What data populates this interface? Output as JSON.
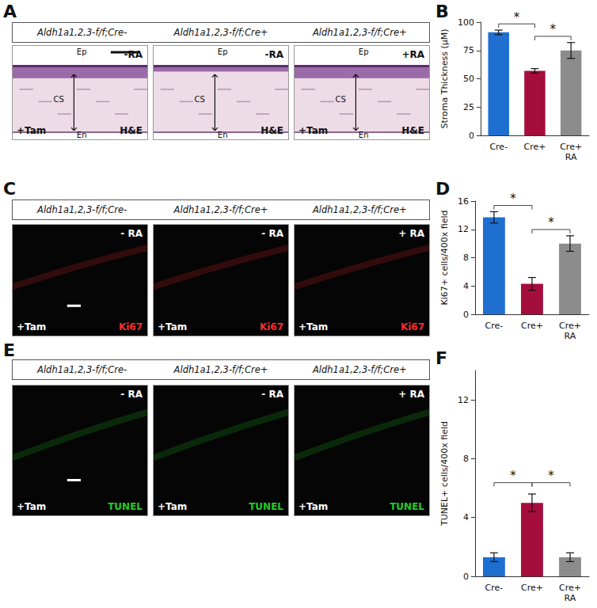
{
  "figure": {
    "image_panels": [
      {
        "panel_label": "A",
        "type": "brightfield",
        "color": "#111111",
        "headers": [
          "Aldh1a1,2,3-f/f;Cre-",
          "Aldh1a1,2,3-f/f;Cre+",
          "Aldh1a1,2,3-f/f;Cre+"
        ],
        "images": [
          {
            "treatment": "-RA",
            "tam": "+Tam",
            "stain": "H&E",
            "layer_labels": [
              "Ep",
              "CS",
              "En"
            ]
          },
          {
            "treatment": "-RA",
            "stain": "H&E",
            "layer_labels": [
              "Ep",
              "CS",
              "En"
            ]
          },
          {
            "treatment": "+RA",
            "tam": "+Tam",
            "stain": "H&E",
            "layer_labels": [
              "Ep",
              "CS",
              "En"
            ]
          }
        ]
      },
      {
        "panel_label": "C",
        "type": "fluorescence",
        "color": "#ff2a2a",
        "headers": [
          "Aldh1a1,2,3-f/f;Cre-",
          "Aldh1a1,2,3-f/f;Cre+",
          "Aldh1a1,2,3-f/f;Cre+"
        ],
        "images": [
          {
            "treatment": "- RA",
            "tam": "+Tam",
            "stain": "Ki67"
          },
          {
            "treatment": "- RA",
            "tam": "+Tam",
            "stain": "Ki67"
          },
          {
            "treatment": "+ RA",
            "tam": "+Tam",
            "stain": "Ki67"
          }
        ]
      },
      {
        "panel_label": "E",
        "type": "fluorescence",
        "color": "#22cc22",
        "headers": [
          "Aldh1a1,2,3-f/f;Cre-",
          "Aldh1a1,2,3-f/f;Cre+",
          "Aldh1a1,2,3-f/f;Cre+"
        ],
        "images": [
          {
            "treatment": "- RA",
            "tam": "+Tam",
            "stain": "TUNEL"
          },
          {
            "treatment": "- RA",
            "tam": "+Tam",
            "stain": "TUNEL"
          },
          {
            "treatment": "+ RA",
            "tam": "+Tam",
            "stain": "TUNEL"
          }
        ]
      }
    ]
  },
  "chart_data": [
    {
      "type": "bar",
      "panel_label": "B",
      "y_label": "Stroma Thickness (μM)",
      "categories": [
        "Cre-",
        "Cre+",
        "Cre+\nRA"
      ],
      "values": [
        91,
        57,
        75
      ],
      "errors": [
        2,
        2,
        7
      ],
      "colors": [
        "#1f6fd1",
        "#a50d3c",
        "#8c8c8c"
      ],
      "ylim": [
        0,
        100
      ],
      "yticks": [
        0,
        25,
        50,
        75,
        100
      ],
      "grid": false,
      "significance": [
        {
          "between": [
            "Cre-",
            "Cre+"
          ],
          "label": "*"
        },
        {
          "between": [
            "Cre+",
            "Cre+\nRA"
          ],
          "label": "*"
        }
      ]
    },
    {
      "type": "bar",
      "panel_label": "D",
      "y_label": "Ki67+ cells/400x field",
      "categories": [
        "Cre-",
        "Cre+",
        "Cre+\nRA"
      ],
      "values": [
        13.7,
        4.3,
        10
      ],
      "errors": [
        0.8,
        0.9,
        1.1
      ],
      "colors": [
        "#1f6fd1",
        "#a50d3c",
        "#8c8c8c"
      ],
      "ylim": [
        0,
        16
      ],
      "yticks": [
        0,
        4,
        8,
        12,
        16
      ],
      "grid": false,
      "significance": [
        {
          "between": [
            "Cre-",
            "Cre+"
          ],
          "label": "*"
        },
        {
          "between": [
            "Cre+",
            "Cre+\nRA"
          ],
          "label": "*"
        }
      ]
    },
    {
      "type": "bar",
      "panel_label": "F",
      "y_label": "TUNEL+ cells/400x field",
      "categories": [
        "Cre-",
        "Cre+",
        "Cre+\nRA"
      ],
      "values": [
        1.3,
        5.0,
        1.3
      ],
      "errors": [
        0.3,
        0.6,
        0.3
      ],
      "colors": [
        "#1f6fd1",
        "#a50d3c",
        "#8c8c8c"
      ],
      "ylim": [
        0,
        14
      ],
      "yticks": [
        0,
        4,
        8,
        12
      ],
      "grid": false,
      "significance": [
        {
          "between": [
            "Cre-",
            "Cre+"
          ],
          "label": "*"
        },
        {
          "between": [
            "Cre+",
            "Cre+\nRA"
          ],
          "label": "*"
        }
      ]
    }
  ]
}
